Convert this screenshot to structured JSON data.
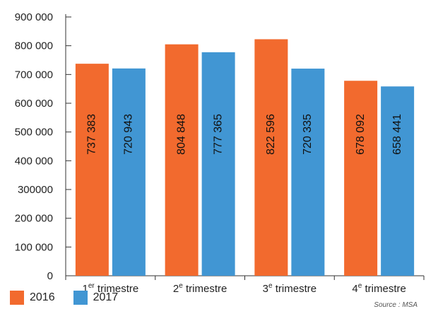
{
  "chart_data": {
    "type": "bar",
    "categories": [
      {
        "num": "1",
        "sup": "er",
        "label": " trimestre"
      },
      {
        "num": "2",
        "sup": "e",
        "label": " trimestre"
      },
      {
        "num": "3",
        "sup": "e",
        "label": " trimestre"
      },
      {
        "num": "4",
        "sup": "e",
        "label": " trimestre"
      }
    ],
    "series": [
      {
        "name": "2016",
        "color": "#f26a2e",
        "values": [
          737383,
          804848,
          822596,
          678092
        ],
        "labels": [
          "737 383",
          "804 848",
          "822 596",
          "678 092"
        ]
      },
      {
        "name": "2017",
        "color": "#4196d3",
        "values": [
          720943,
          777365,
          720335,
          658441
        ],
        "labels": [
          "720 943",
          "777 365",
          "720 335",
          "658 441"
        ]
      }
    ],
    "yticks": [
      {
        "value": 0,
        "label": "0"
      },
      {
        "value": 100000,
        "label": "100 000"
      },
      {
        "value": 200000,
        "label": "200 000"
      },
      {
        "value": 300000,
        "label": "300000"
      },
      {
        "value": 400000,
        "label": "400 000"
      },
      {
        "value": 500000,
        "label": "500 000"
      },
      {
        "value": 600000,
        "label": "600 000"
      },
      {
        "value": 700000,
        "label": "700 000"
      },
      {
        "value": 800000,
        "label": "800 000"
      },
      {
        "value": 900000,
        "label": "900 000"
      }
    ],
    "ylim": [
      0,
      900000
    ],
    "grid": false,
    "legend_position": "bottom-left",
    "source": "Source : MSA"
  }
}
